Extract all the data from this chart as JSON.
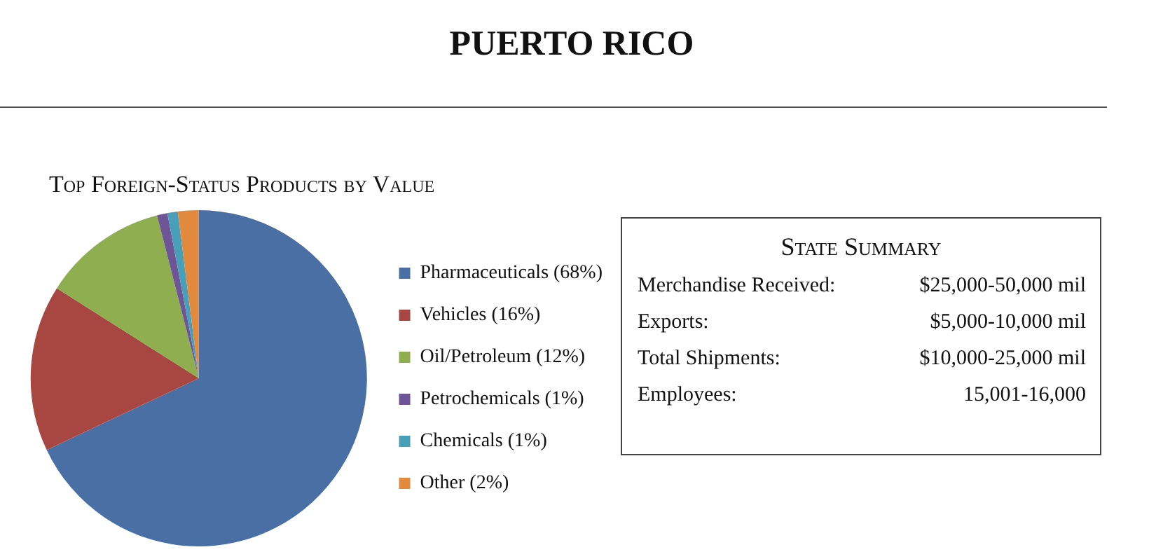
{
  "chart_data": [
    {
      "type": "pie",
      "title": "PUERTO RICO",
      "subtitle": "Top Foreign-Status Products by Value",
      "categories": [
        "Pharmaceuticals (68%)",
        "Vehicles (16%)",
        "Oil/Petroleum (12%)",
        "Petrochemicals (1%)",
        "Chemicals (1%)",
        "Other (2%)"
      ],
      "values": [
        68,
        16,
        12,
        1,
        1,
        2
      ],
      "colors": [
        "#4a6fa5",
        "#a84642",
        "#8fae4f",
        "#6e5596",
        "#4a9fb8",
        "#e18a3e"
      ],
      "legend": "right"
    },
    {
      "type": "other",
      "title": "State Summary",
      "annotations": [
        "Merchandise Received:",
        "$25,000-50,000 mil",
        "Exports:",
        "$5,000-10,000 mil",
        "Total Shipments:",
        "$10,000-25,000 mil",
        "Employees:",
        "15,001-16,000"
      ]
    }
  ]
}
